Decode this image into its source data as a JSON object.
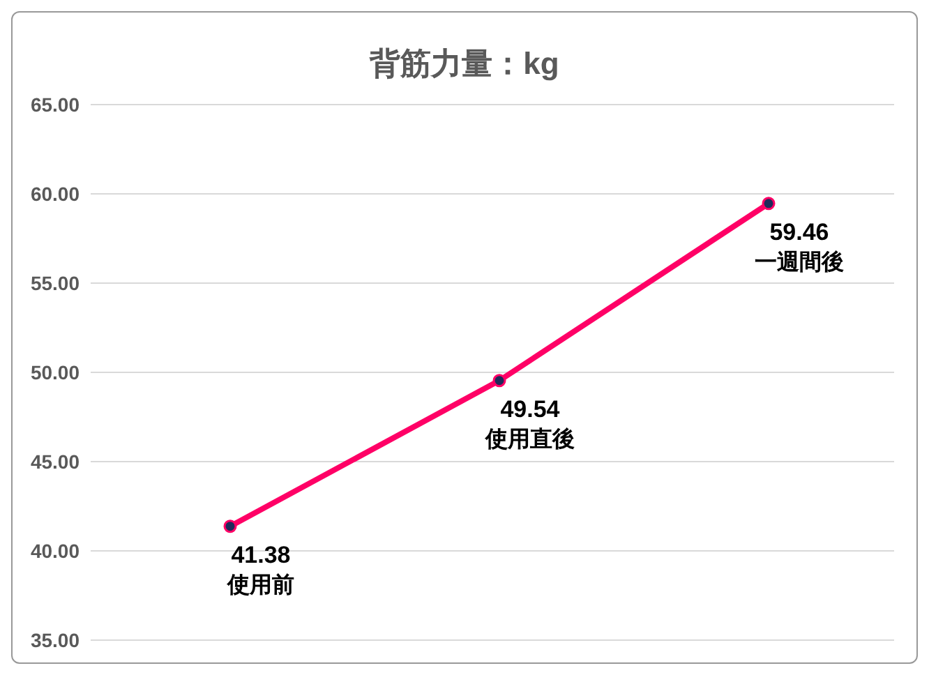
{
  "chart_data": {
    "type": "line",
    "title": "背筋力量：kg",
    "categories": [
      "使用前",
      "使用直後",
      "一週間後"
    ],
    "series": [
      {
        "color": "#ff0066",
        "values": [
          41.38,
          49.54,
          59.46
        ]
      }
    ],
    "ylim": [
      35,
      65
    ],
    "yticks": [
      {
        "value": 35,
        "label": "35.00"
      },
      {
        "value": 40,
        "label": "40.00"
      },
      {
        "value": 45,
        "label": "45.00"
      },
      {
        "value": 50,
        "label": "50.00"
      },
      {
        "value": 55,
        "label": "55.00"
      },
      {
        "value": 60,
        "label": "60.00"
      },
      {
        "value": 65,
        "label": "65.00"
      }
    ],
    "grid": "y",
    "tick_labels": "y",
    "data_labels": true,
    "marker": "circle",
    "line_style": "solid",
    "legend": false
  }
}
